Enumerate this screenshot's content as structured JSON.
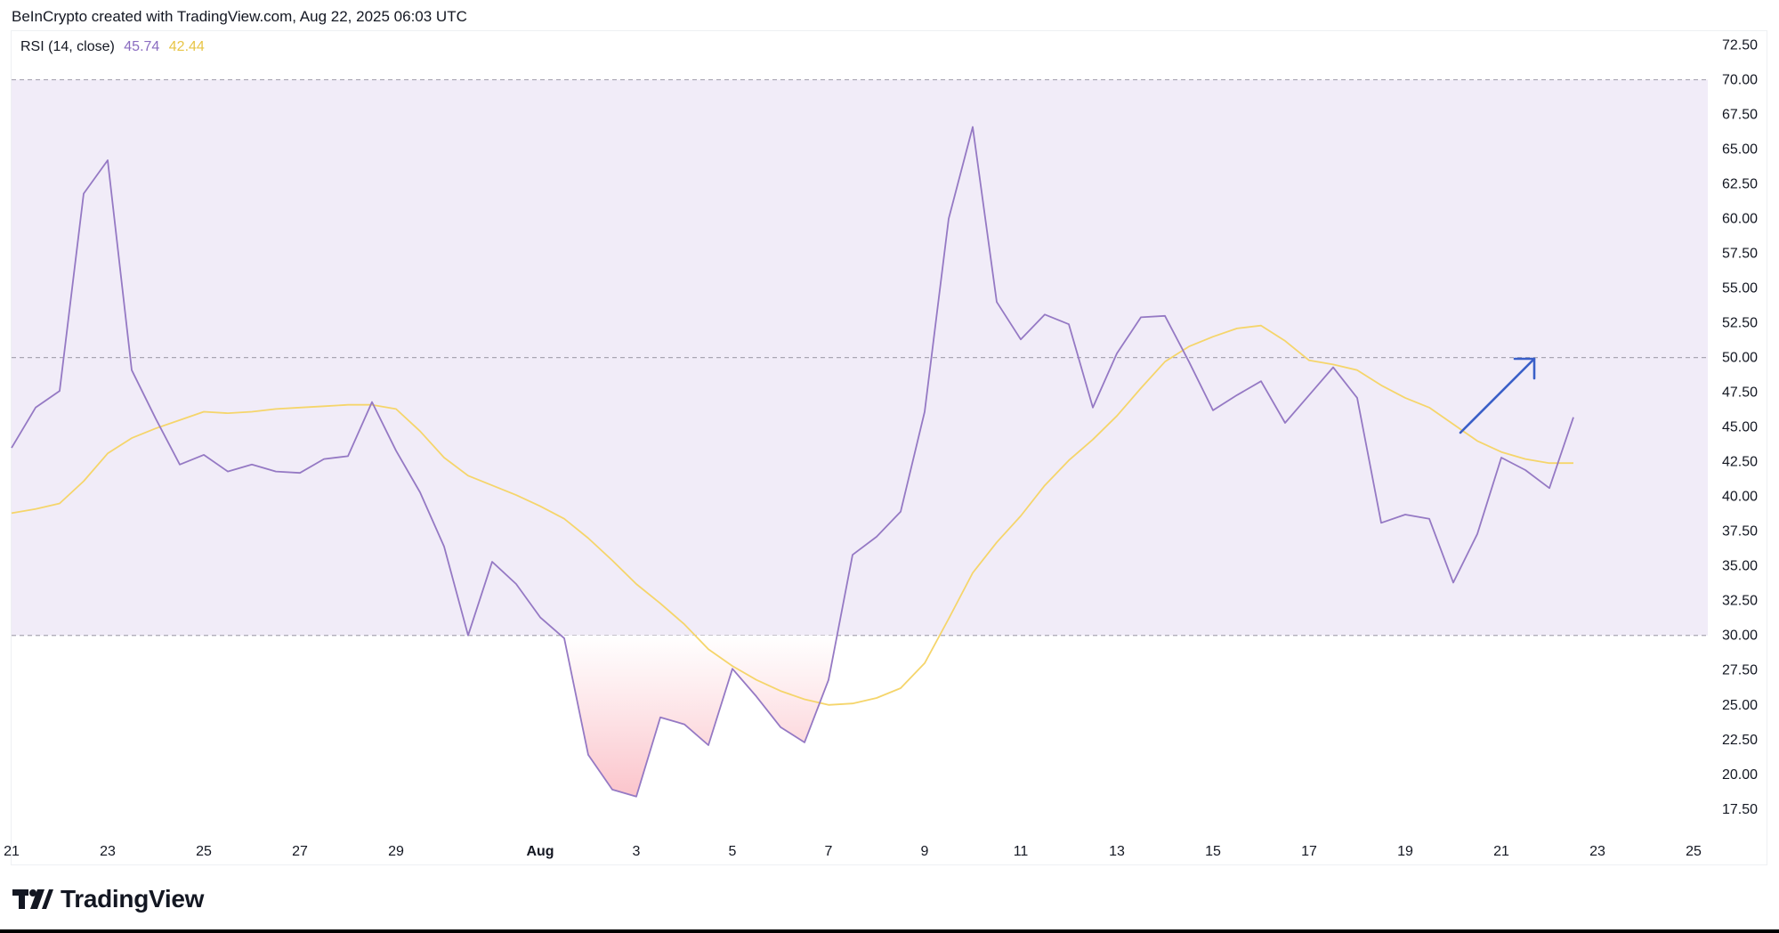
{
  "header": {
    "attribution": "BeInCrypto created with TradingView.com, Aug 22, 2025 06:03 UTC"
  },
  "legend": {
    "label": "RSI (14, close)",
    "rsi_value": "45.74",
    "ma_value": "42.44"
  },
  "footer": {
    "brand": "TradingView"
  },
  "colors": {
    "rsi_line": "#9579c4",
    "ma_line": "#f5d56b",
    "band_fill": "#f1ecf8",
    "oversold_fill": "#fbc4cb",
    "arrow": "#3a5fc8",
    "dashed": "#a9a6b3",
    "axis_text": "#131722"
  },
  "chart_data": {
    "type": "line",
    "ylim": [
      15.5,
      74.2
    ],
    "y_ticks": [
      "17.50",
      "20.00",
      "22.50",
      "25.00",
      "27.50",
      "30.00",
      "32.50",
      "35.00",
      "37.50",
      "40.00",
      "42.50",
      "45.00",
      "47.50",
      "50.00",
      "52.50",
      "55.00",
      "57.50",
      "60.00",
      "62.50",
      "65.00",
      "67.50",
      "70.00",
      "72.50"
    ],
    "x_ticks": [
      {
        "label": "21",
        "idx": 0
      },
      {
        "label": "23",
        "idx": 4
      },
      {
        "label": "25",
        "idx": 8
      },
      {
        "label": "27",
        "idx": 12
      },
      {
        "label": "29",
        "idx": 16
      },
      {
        "label": "Aug",
        "idx": 22,
        "bold": true
      },
      {
        "label": "3",
        "idx": 26
      },
      {
        "label": "5",
        "idx": 30
      },
      {
        "label": "7",
        "idx": 34
      },
      {
        "label": "9",
        "idx": 38
      },
      {
        "label": "11",
        "idx": 42
      },
      {
        "label": "13",
        "idx": 46
      },
      {
        "label": "15",
        "idx": 50
      },
      {
        "label": "17",
        "idx": 54
      },
      {
        "label": "19",
        "idx": 58
      },
      {
        "label": "21",
        "idx": 62
      },
      {
        "label": "23",
        "idx": 66
      },
      {
        "label": "25",
        "idx": 70
      }
    ],
    "bands": {
      "upper": 70,
      "middle": 50,
      "lower": 30
    },
    "series": [
      {
        "values": [
          43.5,
          46.4,
          47.6,
          61.8,
          64.2,
          49.1,
          45.6,
          42.3,
          43.0,
          41.8,
          42.3,
          41.8,
          41.7,
          42.7,
          42.9,
          46.8,
          43.3,
          40.3,
          36.4,
          30.0,
          35.3,
          33.7,
          31.3,
          29.8,
          21.4,
          18.9,
          18.4,
          24.1,
          23.6,
          22.1,
          27.6,
          25.6,
          23.4,
          22.3,
          26.8,
          35.8,
          37.1,
          38.9,
          46.1,
          60.0,
          66.6,
          54.0,
          51.3,
          53.1,
          52.4,
          46.4,
          50.3,
          52.9,
          53.0,
          49.7,
          46.2,
          47.3,
          48.3,
          45.3,
          47.3,
          49.3,
          47.1,
          38.1,
          38.7,
          38.4,
          33.8,
          37.3,
          42.8,
          41.9,
          40.6,
          45.7
        ]
      },
      {
        "values": [
          38.8,
          39.1,
          39.5,
          41.1,
          43.1,
          44.2,
          44.9,
          45.5,
          46.1,
          46.0,
          46.1,
          46.3,
          46.4,
          46.5,
          46.6,
          46.6,
          46.3,
          44.7,
          42.8,
          41.5,
          40.8,
          40.1,
          39.3,
          38.4,
          37.0,
          35.4,
          33.7,
          32.3,
          30.8,
          29.0,
          27.8,
          26.8,
          26.0,
          25.4,
          25.0,
          25.1,
          25.5,
          26.2,
          28.0,
          31.2,
          34.5,
          36.7,
          38.6,
          40.8,
          42.6,
          44.1,
          45.8,
          47.8,
          49.7,
          50.8,
          51.5,
          52.1,
          52.3,
          51.2,
          49.8,
          49.5,
          49.1,
          48.0,
          47.1,
          46.4,
          45.2,
          44.0,
          43.2,
          42.7,
          42.4,
          42.4
        ]
      }
    ]
  }
}
